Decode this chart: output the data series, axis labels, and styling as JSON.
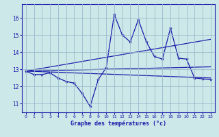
{
  "xlabel": "Graphe des températures (°c)",
  "bg_color": "#cce8e8",
  "line_color": "#1a1aaa",
  "grid_color": "#99bbcc",
  "xlim": [
    -0.5,
    23.5
  ],
  "ylim": [
    10.5,
    16.8
  ],
  "yticks": [
    11,
    12,
    13,
    14,
    15,
    16
  ],
  "xticks": [
    0,
    1,
    2,
    3,
    4,
    5,
    6,
    7,
    8,
    9,
    10,
    11,
    12,
    13,
    14,
    15,
    16,
    17,
    18,
    19,
    20,
    21,
    22,
    23
  ],
  "line1_x": [
    0,
    1,
    2,
    3,
    4,
    5,
    6,
    7,
    8,
    9,
    10,
    11,
    12,
    13,
    14,
    15,
    16,
    17,
    18,
    19,
    20,
    21,
    22,
    23
  ],
  "line1_y": [
    12.9,
    12.7,
    12.7,
    12.8,
    12.5,
    12.3,
    12.2,
    11.6,
    10.85,
    12.4,
    13.1,
    16.2,
    15.0,
    14.6,
    15.9,
    14.6,
    13.75,
    13.6,
    15.4,
    13.65,
    13.6,
    12.5,
    12.45,
    12.4
  ],
  "line2_x": [
    0,
    23
  ],
  "line2_y": [
    12.9,
    12.5
  ],
  "line3_x": [
    0,
    23
  ],
  "line3_y": [
    12.9,
    14.75
  ],
  "line4_x": [
    0,
    23
  ],
  "line4_y": [
    12.9,
    13.15
  ]
}
